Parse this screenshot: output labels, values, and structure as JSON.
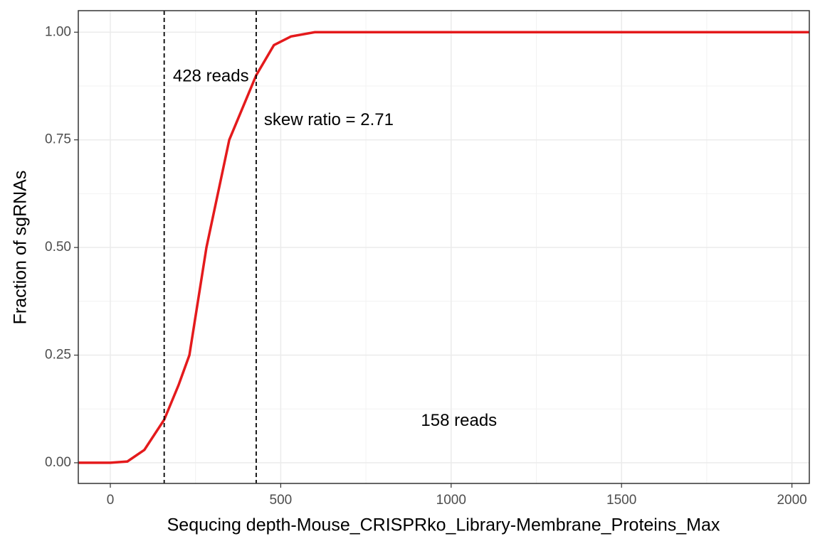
{
  "chart_data": {
    "type": "line",
    "x_label": "Sequcing depth-Mouse_CRISPRko_Library-Membrane_Proteins_Max",
    "y_label": "Fraction of sgRNAs",
    "x": [
      -94,
      0,
      50,
      100,
      158,
      200,
      232,
      282,
      349,
      428,
      480,
      530,
      600,
      2051
    ],
    "series": [
      {
        "color": "#e41a1c",
        "values": [
          0,
          0,
          0.003,
          0.03,
          0.1,
          0.18,
          0.25,
          0.5,
          0.75,
          0.9,
          0.97,
          0.99,
          1,
          1
        ]
      }
    ],
    "xlim": [
      -94,
      2051
    ],
    "ylim": [
      -0.048,
      1.05
    ],
    "xticks": [
      0,
      500,
      1000,
      1500,
      2000
    ],
    "yticks": [
      {
        "value": 0,
        "label": "0.00"
      },
      {
        "value": 0.25,
        "label": "0.25"
      },
      {
        "value": 0.5,
        "label": "0.50"
      },
      {
        "value": 0.75,
        "label": "0.75"
      },
      {
        "value": 1,
        "label": "1.00"
      }
    ],
    "grid": true,
    "vlines": [
      158,
      428
    ],
    "annotations": [
      {
        "text": "428 reads",
        "x": 295,
        "y": 0.896
      },
      {
        "text": "158 reads",
        "x": 1023,
        "y": 0.096
      },
      {
        "text": "skew ratio = 2.71",
        "x": 641,
        "y": 0.795
      }
    ]
  }
}
